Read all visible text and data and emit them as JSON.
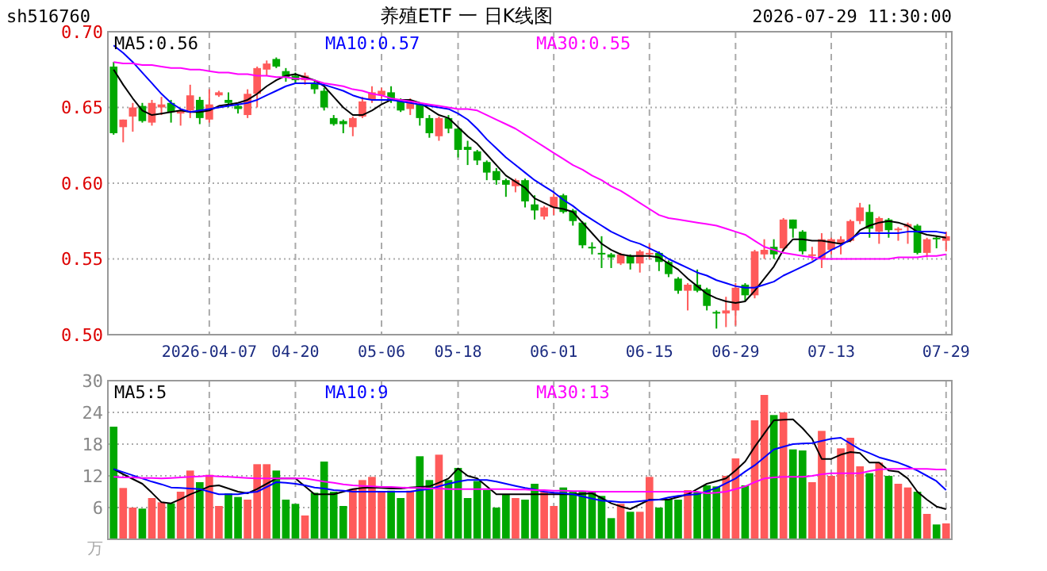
{
  "chart_data": [
    {
      "type": "candlestick",
      "title": "养殖ETF 一 日K线图",
      "subtitle": "sh516760",
      "annotations": [
        "2026-07-29 11:30:00"
      ],
      "categories": [
        null,
        null,
        null,
        null,
        null,
        null,
        null,
        null,
        null,
        null,
        "2026-04-07",
        null,
        null,
        null,
        null,
        null,
        null,
        null,
        null,
        "04-20",
        null,
        null,
        null,
        null,
        null,
        null,
        null,
        null,
        "05-06",
        null,
        null,
        null,
        null,
        null,
        null,
        null,
        "05-18",
        null,
        null,
        null,
        null,
        null,
        null,
        null,
        null,
        null,
        "06-01",
        null,
        null,
        null,
        null,
        null,
        null,
        null,
        null,
        null,
        "06-15",
        null,
        null,
        null,
        null,
        null,
        null,
        null,
        null,
        "06-29",
        null,
        null,
        null,
        null,
        null,
        null,
        null,
        null,
        null,
        "07-13",
        null,
        null,
        null,
        null,
        null,
        null,
        null,
        null,
        null,
        null,
        null,
        "07-29"
      ],
      "ohlc": [
        [
          0.677,
          0.68,
          0.632,
          0.633
        ],
        [
          0.637,
          0.642,
          0.627,
          0.642
        ],
        [
          0.644,
          0.653,
          0.634,
          0.65
        ],
        [
          0.651,
          0.653,
          0.64,
          0.641
        ],
        [
          0.64,
          0.655,
          0.638,
          0.653
        ],
        [
          0.65,
          0.657,
          0.645,
          0.652
        ],
        [
          0.653,
          0.655,
          0.64,
          0.647
        ],
        [
          0.646,
          0.649,
          0.638,
          0.648
        ],
        [
          0.648,
          0.665,
          0.643,
          0.658
        ],
        [
          0.655,
          0.657,
          0.639,
          0.643
        ],
        [
          0.642,
          0.662,
          0.64,
          0.652
        ],
        [
          0.658,
          0.661,
          0.657,
          0.66
        ],
        [
          0.655,
          0.66,
          0.65,
          0.653
        ],
        [
          0.651,
          0.652,
          0.646,
          0.649
        ],
        [
          0.645,
          0.662,
          0.643,
          0.659
        ],
        [
          0.659,
          0.677,
          0.65,
          0.676
        ],
        [
          0.675,
          0.681,
          0.671,
          0.679
        ],
        [
          0.682,
          0.683,
          0.676,
          0.677
        ],
        [
          0.674,
          0.676,
          0.667,
          0.67
        ],
        [
          0.671,
          0.673,
          0.666,
          0.668
        ],
        [
          0.668,
          0.673,
          0.665,
          0.671
        ],
        [
          0.666,
          0.668,
          0.659,
          0.662
        ],
        [
          0.661,
          0.663,
          0.648,
          0.65
        ],
        [
          0.643,
          0.645,
          0.638,
          0.639
        ],
        [
          0.641,
          0.642,
          0.633,
          0.639
        ],
        [
          0.637,
          0.644,
          0.631,
          0.643
        ],
        [
          0.644,
          0.657,
          0.643,
          0.654
        ],
        [
          0.655,
          0.664,
          0.653,
          0.66
        ],
        [
          0.658,
          0.663,
          0.656,
          0.661
        ],
        [
          0.66,
          0.664,
          0.653,
          0.655
        ],
        [
          0.654,
          0.656,
          0.647,
          0.648
        ],
        [
          0.649,
          0.656,
          0.645,
          0.654
        ],
        [
          0.652,
          0.653,
          0.638,
          0.643
        ],
        [
          0.643,
          0.645,
          0.63,
          0.633
        ],
        [
          0.631,
          0.644,
          0.628,
          0.643
        ],
        [
          0.643,
          0.645,
          0.633,
          0.636
        ],
        [
          0.636,
          0.637,
          0.617,
          0.622
        ],
        [
          0.624,
          0.628,
          0.612,
          0.622
        ],
        [
          0.621,
          0.622,
          0.612,
          0.615
        ],
        [
          0.614,
          0.615,
          0.602,
          0.607
        ],
        [
          0.608,
          0.61,
          0.599,
          0.602
        ],
        [
          0.602,
          0.603,
          0.591,
          0.599
        ],
        [
          0.598,
          0.603,
          0.594,
          0.602
        ],
        [
          0.602,
          0.603,
          0.584,
          0.588
        ],
        [
          0.586,
          0.592,
          0.576,
          0.582
        ],
        [
          0.578,
          0.585,
          0.576,
          0.584
        ],
        [
          0.584,
          0.593,
          0.579,
          0.591
        ],
        [
          0.592,
          0.593,
          0.58,
          0.581
        ],
        [
          0.582,
          0.583,
          0.572,
          0.575
        ],
        [
          0.574,
          0.575,
          0.557,
          0.559
        ],
        [
          0.558,
          0.561,
          0.553,
          0.557
        ],
        [
          0.554,
          0.565,
          0.544,
          0.553
        ],
        [
          0.553,
          0.554,
          0.544,
          0.551
        ],
        [
          0.547,
          0.554,
          0.546,
          0.553
        ],
        [
          0.552,
          0.553,
          0.543,
          0.547
        ],
        [
          0.547,
          0.556,
          0.541,
          0.555
        ],
        [
          0.553,
          0.56,
          0.55,
          0.554
        ],
        [
          0.554,
          0.555,
          0.542,
          0.548
        ],
        [
          0.548,
          0.549,
          0.538,
          0.54
        ],
        [
          0.537,
          0.538,
          0.527,
          0.529
        ],
        [
          0.529,
          0.534,
          0.516,
          0.533
        ],
        [
          0.533,
          0.543,
          0.528,
          0.529
        ],
        [
          0.53,
          0.531,
          0.516,
          0.519
        ],
        [
          0.515,
          0.516,
          0.504,
          0.514
        ],
        [
          0.514,
          0.525,
          0.505,
          0.516
        ],
        [
          0.516,
          0.534,
          0.506,
          0.531
        ],
        [
          0.533,
          0.534,
          0.522,
          0.526
        ],
        [
          0.526,
          0.556,
          0.524,
          0.555
        ],
        [
          0.553,
          0.563,
          0.55,
          0.556
        ],
        [
          0.558,
          0.563,
          0.55,
          0.553
        ],
        [
          0.557,
          0.577,
          0.555,
          0.576
        ],
        [
          0.576,
          0.576,
          0.564,
          0.57
        ],
        [
          0.568,
          0.569,
          0.553,
          0.555
        ],
        [
          0.552,
          0.558,
          0.549,
          0.553
        ],
        [
          0.55,
          0.567,
          0.544,
          0.563
        ],
        [
          0.556,
          0.564,
          0.553,
          0.563
        ],
        [
          0.56,
          0.565,
          0.553,
          0.563
        ],
        [
          0.562,
          0.576,
          0.561,
          0.575
        ],
        [
          0.575,
          0.587,
          0.573,
          0.584
        ],
        [
          0.581,
          0.586,
          0.564,
          0.57
        ],
        [
          0.568,
          0.578,
          0.56,
          0.577
        ],
        [
          0.576,
          0.577,
          0.564,
          0.569
        ],
        [
          0.569,
          0.571,
          0.562,
          0.57
        ],
        [
          0.571,
          0.574,
          0.56,
          0.573
        ],
        [
          0.572,
          0.573,
          0.553,
          0.554
        ],
        [
          0.554,
          0.564,
          0.551,
          0.563
        ],
        [
          0.564,
          0.565,
          0.557,
          0.563
        ],
        [
          0.562,
          0.568,
          0.555,
          0.565
        ]
      ],
      "series": [
        {
          "type": "line",
          "name": "MA5:0.56",
          "color": "#000000",
          "values": [
            0.675,
            0.665,
            0.656,
            0.648,
            0.645,
            0.646,
            0.647,
            0.648,
            0.647,
            0.647,
            0.648,
            0.651,
            0.652,
            0.653,
            0.655,
            0.659,
            0.664,
            0.668,
            0.671,
            0.672,
            0.67,
            0.668,
            0.664,
            0.657,
            0.65,
            0.645,
            0.645,
            0.648,
            0.652,
            0.655,
            0.655,
            0.655,
            0.653,
            0.649,
            0.645,
            0.643,
            0.637,
            0.631,
            0.626,
            0.619,
            0.612,
            0.605,
            0.601,
            0.597,
            0.59,
            0.587,
            0.584,
            0.583,
            0.581,
            0.574,
            0.567,
            0.56,
            0.556,
            0.553,
            0.552,
            0.552,
            0.552,
            0.551,
            0.547,
            0.543,
            0.537,
            0.532,
            0.527,
            0.524,
            0.522,
            0.521,
            0.522,
            0.529,
            0.537,
            0.545,
            0.556,
            0.563,
            0.563,
            0.562,
            0.562,
            0.561,
            0.56,
            0.562,
            0.569,
            0.572,
            0.574,
            0.575,
            0.574,
            0.572,
            0.568,
            0.566,
            0.565,
            0.564
          ]
        },
        {
          "type": "line",
          "name": "MA10:0.57",
          "color": "#0000ff",
          "values": [
            0.691,
            0.686,
            0.68,
            0.673,
            0.666,
            0.659,
            0.653,
            0.649,
            0.647,
            0.648,
            0.649,
            0.65,
            0.651,
            0.652,
            0.653,
            0.655,
            0.658,
            0.661,
            0.664,
            0.666,
            0.666,
            0.666,
            0.665,
            0.663,
            0.661,
            0.658,
            0.656,
            0.655,
            0.655,
            0.655,
            0.654,
            0.653,
            0.652,
            0.651,
            0.65,
            0.649,
            0.646,
            0.642,
            0.636,
            0.629,
            0.623,
            0.617,
            0.612,
            0.607,
            0.602,
            0.598,
            0.594,
            0.589,
            0.585,
            0.58,
            0.576,
            0.572,
            0.568,
            0.565,
            0.562,
            0.56,
            0.557,
            0.554,
            0.55,
            0.547,
            0.544,
            0.541,
            0.539,
            0.536,
            0.534,
            0.532,
            0.531,
            0.531,
            0.533,
            0.535,
            0.539,
            0.542,
            0.545,
            0.548,
            0.552,
            0.556,
            0.559,
            0.563,
            0.567,
            0.567,
            0.567,
            0.567,
            0.567,
            0.568,
            0.568,
            0.568,
            0.568,
            0.567
          ]
        },
        {
          "type": "line",
          "name": "MA30:0.55",
          "color": "#ff00ff",
          "values": [
            0.68,
            0.679,
            0.679,
            0.678,
            0.678,
            0.677,
            0.676,
            0.676,
            0.675,
            0.675,
            0.674,
            0.673,
            0.673,
            0.672,
            0.672,
            0.671,
            0.671,
            0.67,
            0.67,
            0.669,
            0.669,
            0.668,
            0.666,
            0.665,
            0.664,
            0.662,
            0.661,
            0.659,
            0.658,
            0.656,
            0.655,
            0.654,
            0.653,
            0.652,
            0.651,
            0.65,
            0.649,
            0.649,
            0.648,
            0.645,
            0.642,
            0.639,
            0.636,
            0.632,
            0.628,
            0.624,
            0.62,
            0.616,
            0.612,
            0.609,
            0.605,
            0.602,
            0.598,
            0.595,
            0.591,
            0.587,
            0.583,
            0.579,
            0.577,
            0.576,
            0.575,
            0.574,
            0.573,
            0.572,
            0.57,
            0.568,
            0.566,
            0.562,
            0.558,
            0.556,
            0.554,
            0.553,
            0.552,
            0.551,
            0.55,
            0.55,
            0.55,
            0.55,
            0.55,
            0.55,
            0.55,
            0.55,
            0.551,
            0.551,
            0.551,
            0.552,
            0.552,
            0.553
          ]
        }
      ],
      "ylim": [
        0.5,
        0.7
      ],
      "yticks": [
        {
          "value": 0.5,
          "label": "0.50"
        },
        {
          "value": 0.55,
          "label": "0.55"
        },
        {
          "value": 0.6,
          "label": "0.60"
        },
        {
          "value": 0.65,
          "label": "0.65"
        },
        {
          "value": 0.7,
          "label": "0.70"
        }
      ],
      "grid": true,
      "legend": "top"
    },
    {
      "type": "bar",
      "ylabel": "万",
      "categories": [
        null,
        null,
        null,
        null,
        null,
        null,
        null,
        null,
        null,
        null,
        null,
        null,
        null,
        null,
        null,
        null,
        null,
        null,
        null,
        null,
        null,
        null,
        null,
        null,
        null,
        null,
        null,
        null,
        null,
        null,
        null,
        null,
        null,
        null,
        null,
        null,
        null,
        null,
        null,
        null,
        null,
        null,
        null,
        null,
        null,
        null,
        null,
        null,
        null,
        null,
        null,
        null,
        null,
        null,
        null,
        null,
        null,
        null,
        null,
        null,
        null,
        null,
        null,
        null,
        null,
        null,
        null,
        null,
        null,
        null,
        null,
        null,
        null,
        null,
        null,
        null,
        null,
        null,
        null,
        null,
        null,
        null,
        null,
        null,
        null,
        null,
        null,
        null
      ],
      "series": [
        {
          "type": "bar",
          "values": [
            21.3,
            9.7,
            6,
            5.8,
            7.8,
            7,
            6.8,
            9,
            13,
            10.8,
            12.2,
            6.3,
            8.7,
            8,
            7.5,
            14.2,
            14.2,
            13,
            7.5,
            6.7,
            4.5,
            8.8,
            14.7,
            9,
            6.3,
            9.5,
            11.2,
            11.8,
            9,
            9.2,
            7.8,
            9.2,
            15.7,
            11.2,
            16,
            11.2,
            13.5,
            7.8,
            11,
            9.3,
            6,
            8.5,
            7.8,
            7.5,
            10.5,
            9,
            6.3,
            9.8,
            9,
            9,
            9,
            8.2,
            4,
            6.7,
            5.2,
            5.2,
            11.8,
            6,
            7.5,
            7.5,
            9.3,
            9,
            10.2,
            10,
            12,
            15.3,
            10.2,
            22.5,
            27.3,
            23.5,
            24,
            17,
            16.8,
            10.8,
            20.5,
            12,
            17.2,
            19.2,
            13.8,
            12.5,
            14.5,
            12,
            10.5,
            9.8,
            9,
            4.8,
            2.8,
            3
          ],
          "colors": [
            "#00a800",
            "#ff5a5a",
            "#ff5a5a",
            "#00a800",
            "#ff5a5a",
            "#ff5a5a",
            "#00a800",
            "#ff5a5a",
            "#ff5a5a",
            "#00a800",
            "#ff5a5a",
            "#ff5a5a",
            "#00a800",
            "#00a800",
            "#ff5a5a",
            "#ff5a5a",
            "#ff5a5a",
            "#00a800",
            "#00a800",
            "#00a800",
            "#ff5a5a",
            "#00a800",
            "#00a800",
            "#00a800",
            "#00a800",
            "#ff5a5a",
            "#ff5a5a",
            "#ff5a5a",
            "#ff5a5a",
            "#00a800",
            "#00a800",
            "#ff5a5a",
            "#00a800",
            "#00a800",
            "#ff5a5a",
            "#00a800",
            "#00a800",
            "#00a800",
            "#00a800",
            "#00a800",
            "#00a800",
            "#00a800",
            "#ff5a5a",
            "#00a800",
            "#00a800",
            "#ff5a5a",
            "#ff5a5a",
            "#00a800",
            "#00a800",
            "#00a800",
            "#00a800",
            "#00a800",
            "#00a800",
            "#ff5a5a",
            "#00a800",
            "#ff5a5a",
            "#ff5a5a",
            "#00a800",
            "#00a800",
            "#00a800",
            "#ff5a5a",
            "#00a800",
            "#00a800",
            "#00a800",
            "#ff5a5a",
            "#ff5a5a",
            "#00a800",
            "#ff5a5a",
            "#ff5a5a",
            "#00a800",
            "#ff5a5a",
            "#00a800",
            "#00a800",
            "#ff5a5a",
            "#ff5a5a",
            "#ff5a5a",
            "#ff5a5a",
            "#ff5a5a",
            "#ff5a5a",
            "#00a800",
            "#ff5a5a",
            "#00a800",
            "#ff5a5a",
            "#ff5a5a",
            "#00a800",
            "#ff5a5a",
            "#00a800",
            "#ff5a5a"
          ]
        },
        {
          "type": "line",
          "name": "MA5:5",
          "color": "#000000",
          "values": [
            13.3,
            12.3,
            11.4,
            10.5,
            8.8,
            7,
            6.8,
            7.6,
            8.5,
            9.2,
            10,
            10.2,
            9.6,
            9,
            8.7,
            9.5,
            10.5,
            11.5,
            11.5,
            11.5,
            10,
            8.5,
            8.5,
            8.5,
            9,
            9.5,
            9.7,
            9.8,
            9.7,
            9.6,
            9.6,
            9.8,
            9.9,
            10,
            10.7,
            11.5,
            13.4,
            12,
            11.5,
            10,
            8.5,
            8.5,
            8.5,
            8.5,
            8.5,
            8.5,
            8.5,
            8.5,
            8.5,
            8.6,
            8.7,
            7.8,
            6.8,
            6.2,
            5.7,
            6.6,
            7.5,
            7.5,
            7.5,
            8,
            8.5,
            9.5,
            10.5,
            11,
            11.5,
            13,
            14.7,
            17.5,
            20,
            22.5,
            22.6,
            22.7,
            21,
            19,
            15.2,
            15.2,
            16,
            16.5,
            16.3,
            14.5,
            14.5,
            13,
            12.8,
            11.5,
            9,
            7.5,
            6.2,
            5.7
          ]
        },
        {
          "type": "line",
          "name": "MA10:9",
          "color": "#0000ff",
          "values": [
            13.3,
            12.7,
            12.1,
            11.5,
            10.9,
            10.4,
            9.8,
            9.7,
            9.6,
            9.5,
            9,
            8.5,
            8.5,
            8.5,
            8.8,
            9,
            9.9,
            10.8,
            10.7,
            10.5,
            10.2,
            9.8,
            9.6,
            9.3,
            9.2,
            9,
            9,
            9,
            9,
            9,
            9,
            9,
            9.3,
            9.5,
            10,
            10.5,
            10.9,
            11.2,
            11.2,
            11.2,
            10.9,
            10.5,
            10.1,
            9.7,
            9.4,
            9,
            8.8,
            8.7,
            8.5,
            8.1,
            7.7,
            7.3,
            7.2,
            7,
            7,
            7.2,
            7.4,
            7.5,
            7.9,
            8.2,
            8.4,
            8.5,
            9.1,
            9.7,
            10.6,
            11.5,
            12.8,
            14,
            15.5,
            17,
            17.5,
            18,
            18.1,
            18.2,
            18.6,
            19,
            19.2,
            18.1,
            17,
            16.3,
            15.5,
            15,
            14.5,
            13.8,
            13,
            12,
            11,
            9.3
          ]
        },
        {
          "type": "line",
          "name": "MA30:13",
          "color": "#ff00ff",
          "values": [
            11.8,
            11.7,
            11.7,
            11.6,
            11.6,
            11.5,
            11.6,
            11.7,
            11.8,
            11.9,
            12,
            11.9,
            11.8,
            11.7,
            11.6,
            11.5,
            11.5,
            11.5,
            11.5,
            11.5,
            11.5,
            11.2,
            10.9,
            10.7,
            10.4,
            10.2,
            10.1,
            10,
            9.9,
            9.9,
            9.8,
            9.7,
            9.7,
            9.6,
            9.6,
            9.5,
            9.5,
            9.5,
            9.5,
            9.5,
            9.5,
            9.5,
            9.4,
            9.4,
            9.3,
            9.3,
            9.2,
            9.2,
            9.1,
            9.1,
            9,
            9,
            9,
            9,
            9,
            9,
            9,
            9,
            9,
            9,
            9,
            9,
            8.7,
            8.8,
            9,
            9.5,
            10,
            10.8,
            11.5,
            11.7,
            11.8,
            11.8,
            11.8,
            12,
            12.3,
            12.5,
            12.5,
            12.5,
            12.5,
            12.9,
            13.2,
            13.3,
            13.3,
            13.4,
            13.3,
            13.3,
            13.2,
            13.2
          ]
        }
      ],
      "ylim": [
        0,
        30
      ],
      "yticks": [
        6,
        12,
        18,
        24,
        30
      ],
      "grid": true,
      "legend": "top",
      "tick_labels": "y"
    }
  ]
}
